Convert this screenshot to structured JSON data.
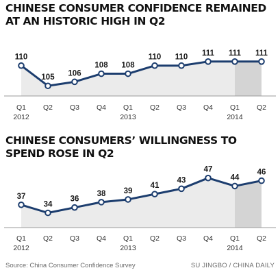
{
  "chart_data": [
    {
      "type": "area",
      "title_line1": "CHINESE CONSUMER CONFIDENCE REMAINED",
      "title_line2": "AT AN HISTORIC HIGH IN Q2",
      "quarters": [
        "Q1",
        "Q2",
        "Q3",
        "Q4",
        "Q1",
        "Q2",
        "Q3",
        "Q4",
        "Q1",
        "Q2"
      ],
      "years": [
        "2012",
        "",
        "",
        "",
        "2013",
        "",
        "",
        "",
        "2014",
        ""
      ],
      "values": [
        110,
        105,
        106,
        108,
        108,
        110,
        110,
        111,
        111,
        111
      ],
      "value_labels": [
        "110",
        "105",
        "106",
        "108",
        "108",
        "110",
        "110",
        "111",
        "111",
        "111"
      ],
      "ylim": [
        102.5,
        113
      ],
      "highlight_from_index": 8,
      "line_color": "#1c3d6e",
      "fill_color": "#ebebeb",
      "highlight_color": "#d4d4d4"
    },
    {
      "type": "area",
      "title_line1": "CHINESE CONSUMERS’ WILLINGNESS TO",
      "title_line2": "SPEND ROSE IN Q2",
      "quarters": [
        "Q1",
        "Q2",
        "Q3",
        "Q4",
        "Q1",
        "Q2",
        "Q3",
        "Q4",
        "Q1",
        "Q2"
      ],
      "years": [
        "2012",
        "",
        "",
        "",
        "2013",
        "",
        "",
        "",
        "2014",
        ""
      ],
      "values": [
        37,
        34,
        36,
        38,
        39,
        41,
        43,
        47,
        44,
        46
      ],
      "value_labels": [
        "37",
        "34",
        "36",
        "38",
        "39",
        "41",
        "43",
        "47",
        "44",
        "46"
      ],
      "ylim": [
        28.5,
        50.5
      ],
      "highlight_from_index": 8,
      "line_color": "#1c3d6e",
      "fill_color": "#ebebeb",
      "highlight_color": "#d4d4d4"
    }
  ],
  "footer": {
    "source": "Source: China Consumer Confidence Survey",
    "credit": "SU JINGBO / CHINA DAILY"
  }
}
